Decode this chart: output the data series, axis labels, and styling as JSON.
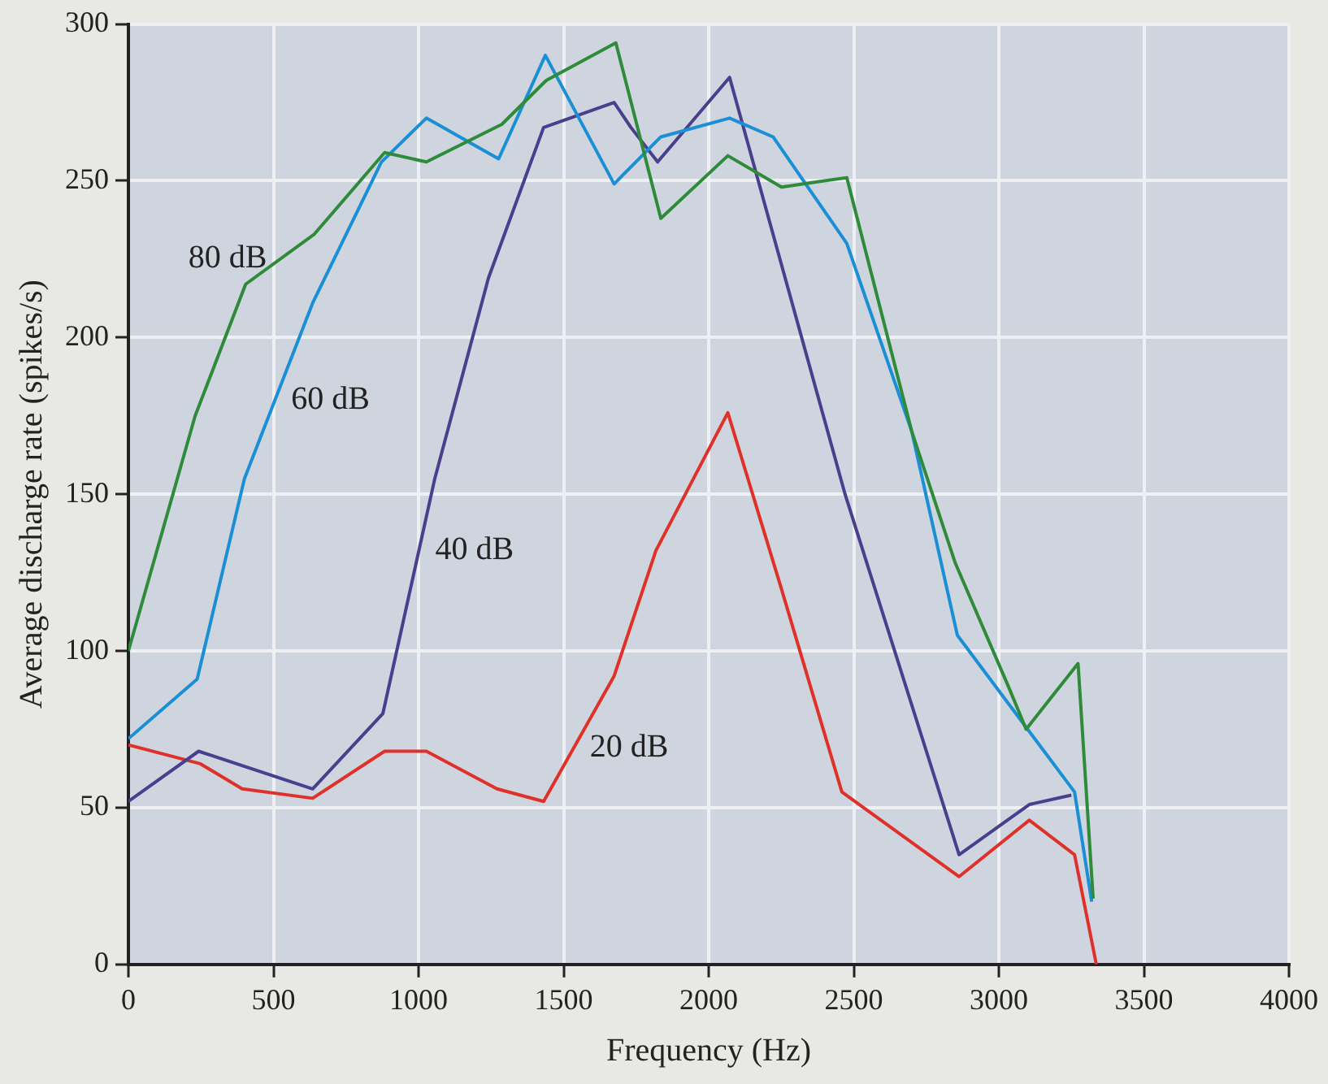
{
  "chart_data": {
    "type": "line",
    "xlabel": "Frequency (Hz)",
    "ylabel": "Average discharge rate (spikes/s)",
    "xlim": [
      0,
      4000
    ],
    "xticks": [
      0,
      500,
      1000,
      1500,
      2000,
      2500,
      3000,
      3500,
      4000
    ],
    "ylim": [
      0,
      300
    ],
    "yticks": [
      0,
      50,
      100,
      150,
      200,
      250,
      300
    ],
    "grid": true,
    "legend": false,
    "marker": "none",
    "line_style": "solid",
    "series": [
      {
        "name": "80 dB",
        "color": "#2e8b3a",
        "x": [
          0,
          230,
          404,
          641,
          883,
          1027,
          1287,
          1440,
          1680,
          1835,
          2066,
          2251,
          2476,
          2700,
          2850,
          3036,
          3094,
          3273,
          3325
        ],
        "values": [
          100,
          175,
          217,
          233,
          259,
          256,
          268,
          282,
          294,
          238,
          258,
          248,
          251,
          170,
          128,
          88,
          75,
          96,
          21
        ]
      },
      {
        "name": "60 dB",
        "color": "#1a8fd6",
        "x": [
          0,
          237,
          400,
          635,
          872,
          1027,
          1276,
          1437,
          1674,
          1835,
          2072,
          2222,
          2476,
          2700,
          2857,
          3261,
          3320
        ],
        "values": [
          72,
          91,
          155,
          211,
          256,
          270,
          257,
          290,
          249,
          264,
          270,
          264,
          230,
          170,
          105,
          55,
          20
        ]
      },
      {
        "name": "40 dB",
        "color": "#4a3f8c",
        "x": [
          0,
          242,
          635,
          877,
          1056,
          1241,
          1431,
          1674,
          1732,
          1824,
          2072,
          2470,
          2863,
          3105,
          3250
        ],
        "values": [
          52,
          68,
          56,
          80,
          155,
          219,
          267,
          275,
          267,
          256,
          283,
          150,
          35,
          51,
          54
        ]
      },
      {
        "name": "20 dB",
        "color": "#e0302a",
        "x": [
          0,
          248,
          392,
          635,
          883,
          1027,
          1270,
          1431,
          1674,
          1818,
          2066,
          2250,
          2459,
          2863,
          3105,
          3261,
          3336
        ],
        "values": [
          70,
          64,
          56,
          53,
          68,
          68,
          56,
          52,
          92,
          132,
          176,
          120,
          55,
          28,
          46,
          35,
          0
        ]
      }
    ]
  }
}
